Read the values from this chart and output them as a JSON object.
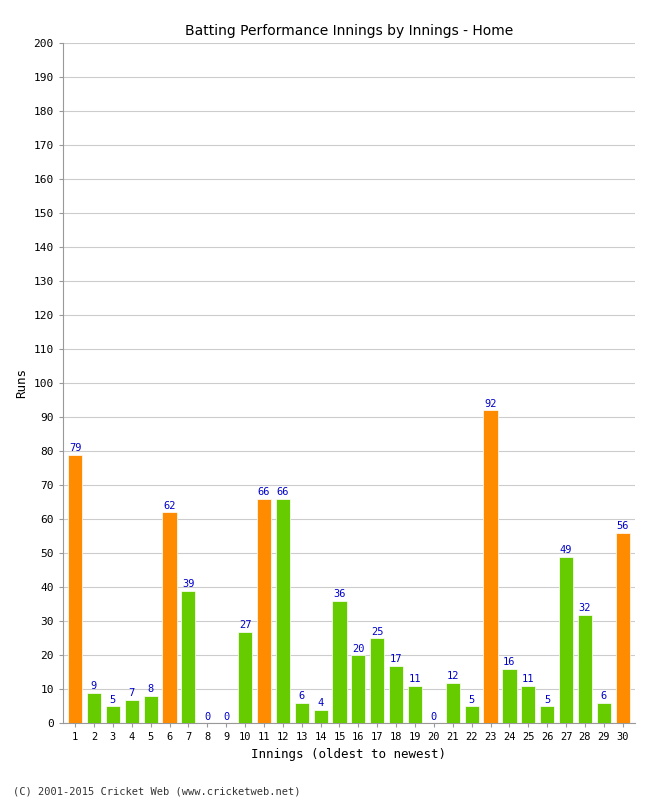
{
  "innings": [
    1,
    2,
    3,
    4,
    5,
    6,
    7,
    8,
    9,
    10,
    11,
    12,
    13,
    14,
    15,
    16,
    17,
    18,
    19,
    20,
    21,
    22,
    23,
    24,
    25,
    26,
    27,
    28,
    29,
    30
  ],
  "values": [
    79,
    9,
    5,
    7,
    8,
    62,
    39,
    0,
    0,
    27,
    66,
    66,
    6,
    4,
    36,
    20,
    25,
    17,
    11,
    0,
    12,
    5,
    92,
    16,
    11,
    5,
    49,
    32,
    6,
    56
  ],
  "colors": [
    "#ff8c00",
    "#66cc00",
    "#66cc00",
    "#66cc00",
    "#66cc00",
    "#ff8c00",
    "#66cc00",
    "#66cc00",
    "#66cc00",
    "#66cc00",
    "#ff8c00",
    "#66cc00",
    "#66cc00",
    "#66cc00",
    "#66cc00",
    "#66cc00",
    "#66cc00",
    "#66cc00",
    "#66cc00",
    "#66cc00",
    "#66cc00",
    "#66cc00",
    "#ff8c00",
    "#66cc00",
    "#66cc00",
    "#66cc00",
    "#66cc00",
    "#66cc00",
    "#66cc00",
    "#ff8c00"
  ],
  "title": "Batting Performance Innings by Innings - Home",
  "xlabel": "Innings (oldest to newest)",
  "ylabel": "Runs",
  "ylim": [
    0,
    200
  ],
  "yticks": [
    0,
    10,
    20,
    30,
    40,
    50,
    60,
    70,
    80,
    90,
    100,
    110,
    120,
    130,
    140,
    150,
    160,
    170,
    180,
    190,
    200
  ],
  "label_color": "#0000cc",
  "bar_edge_color": "#ffffff",
  "background_color": "#ffffff",
  "footer": "(C) 2001-2015 Cricket Web (www.cricketweb.net)",
  "grid_color": "#cccccc"
}
